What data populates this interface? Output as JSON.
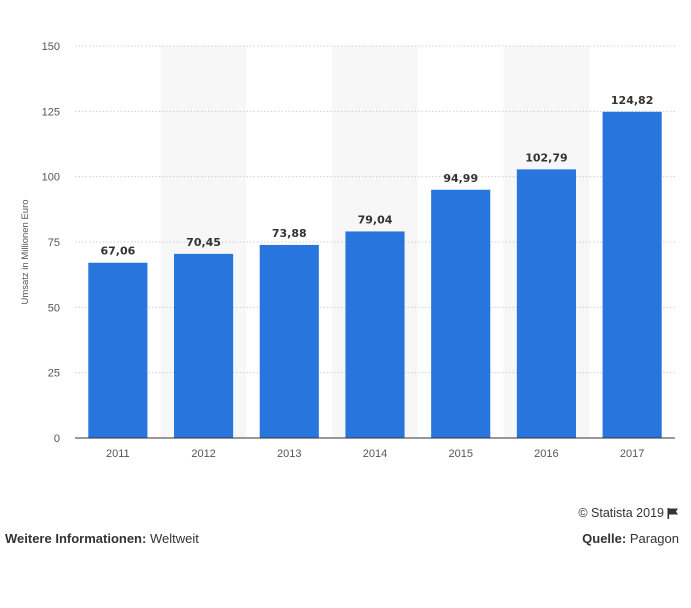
{
  "chart_data": {
    "type": "bar",
    "categories": [
      "2011",
      "2012",
      "2013",
      "2014",
      "2015",
      "2016",
      "2017"
    ],
    "values": [
      67.06,
      70.45,
      73.88,
      79.04,
      94.99,
      102.79,
      124.82
    ],
    "data_labels": [
      "67,06",
      "70,45",
      "73,88",
      "79,04",
      "94,99",
      "102,79",
      "124,82"
    ],
    "ylabel": "Umsatz in Millionen Euro",
    "xlabel": "",
    "ylim": [
      0,
      150
    ],
    "yticks": [
      "0",
      "25",
      "50",
      "75",
      "100",
      "125",
      "150"
    ],
    "grid": true,
    "bar_color": "#2876dd",
    "band_color": "#f7f7f7"
  },
  "footer": {
    "copyright": "© Statista 2019",
    "info_label": "Weitere Informationen:",
    "info_value": "Weltweit",
    "source_label": "Quelle:",
    "source_value": "Paragon"
  },
  "icons": {
    "flag": "flag-icon"
  }
}
